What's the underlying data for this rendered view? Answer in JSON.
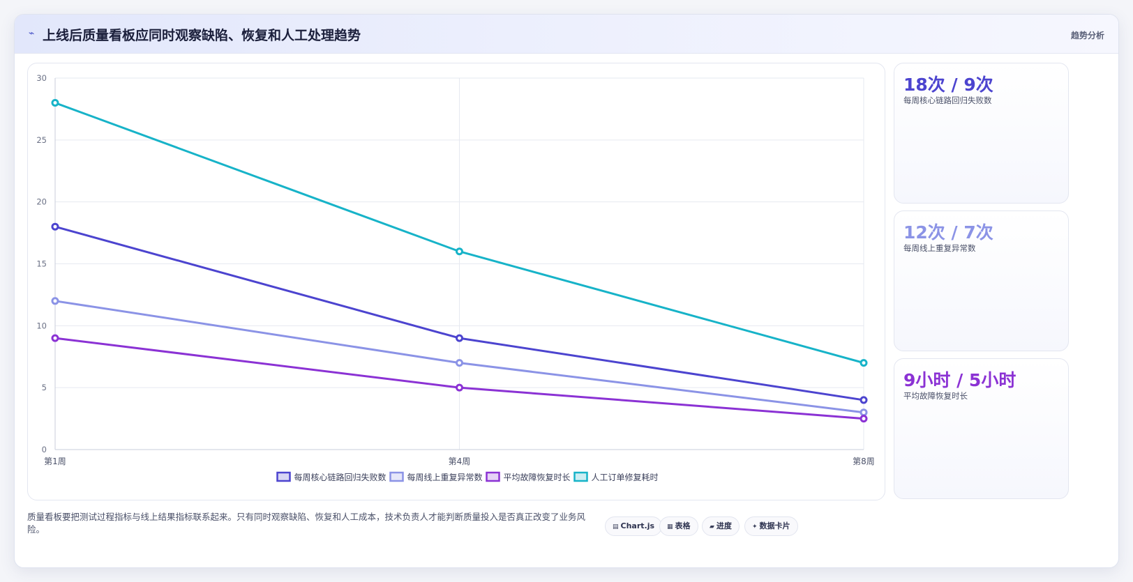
{
  "header": {
    "title": "上线后质量看板应同时观察缺陷、恢复和人工处理趋势",
    "tag": "趋势分析"
  },
  "kpis": [
    {
      "value": "18次 / 9次",
      "label": "每周核心链路回归失败数",
      "color": "#4c44cf"
    },
    {
      "value": "12次 / 7次",
      "label": "每周线上重复异常数",
      "color": "#8b93e6"
    },
    {
      "value": "9小时 / 5小时",
      "label": "平均故障恢复时长",
      "color": "#8b32d4"
    }
  ],
  "footnote": "质量看板要把测试过程指标与线上结果指标联系起来。只有同时观察缺陷、恢复和人工成本，技术负责人才能判断质量投入是否真正改变了业务风险。",
  "chips": [
    {
      "icon": "chart-icon",
      "glyph": "▤",
      "label": "Chart.js"
    },
    {
      "icon": "table-icon",
      "glyph": "▦",
      "label": "表格"
    },
    {
      "icon": "progress-icon",
      "glyph": "▰",
      "label": "进度"
    },
    {
      "icon": "sparkle-icon",
      "glyph": "✦",
      "label": "数据卡片"
    }
  ],
  "chart_data": {
    "type": "line",
    "categories": [
      "第1周",
      "第4周",
      "第8周"
    ],
    "ylim": [
      0,
      30
    ],
    "yticks": [
      0,
      5,
      10,
      15,
      20,
      25,
      30
    ],
    "grid": true,
    "legend_position": "bottom",
    "series": [
      {
        "name": "每周核心链路回归失败数",
        "values": [
          18,
          9,
          4
        ],
        "color": "#4c44cf"
      },
      {
        "name": "每周线上重复异常数",
        "values": [
          12,
          7,
          3
        ],
        "color": "#8b93e6"
      },
      {
        "name": "平均故障恢复时长",
        "values": [
          9,
          5,
          2.5
        ],
        "color": "#8b32d4"
      },
      {
        "name": "人工订单修复耗时",
        "values": [
          28,
          16,
          7
        ],
        "color": "#17b3c8"
      }
    ]
  }
}
